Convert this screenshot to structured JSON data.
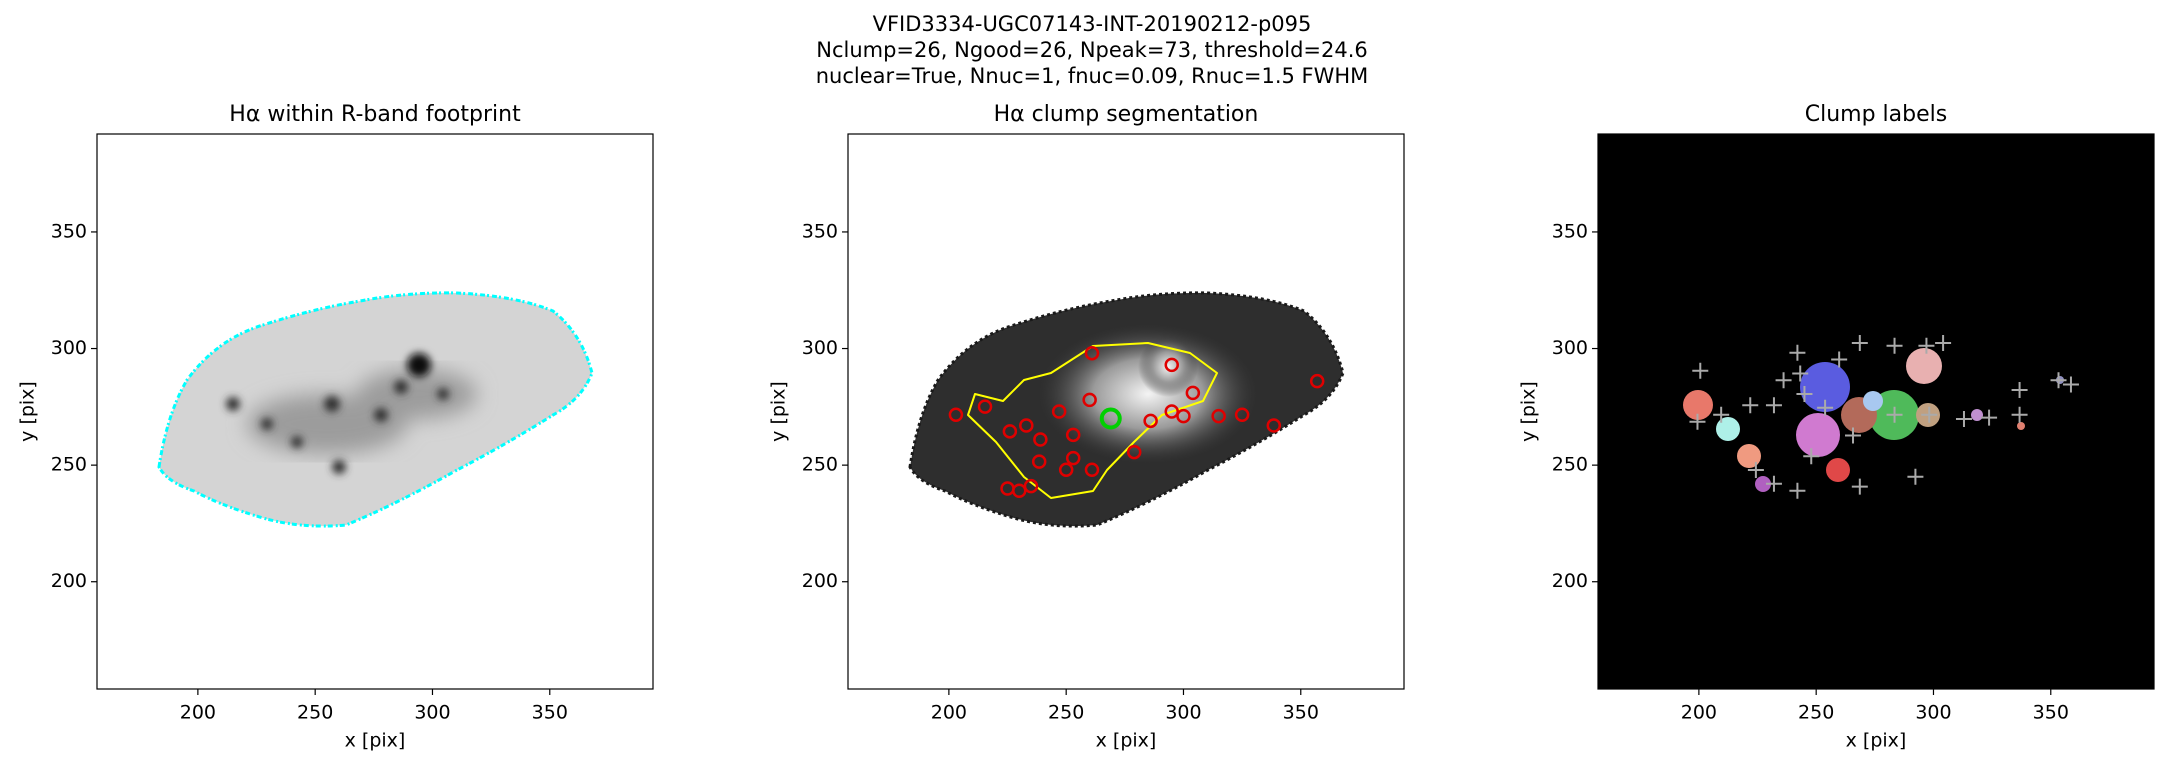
{
  "suptitle": [
    "VFID3334-UGC07143-INT-20190212-p095",
    "Nclump=26, Ngood=26, Npeak=73, threshold=24.6",
    "nuclear=True, Nnuc=1, fnuc=0.09, Rnuc=1.5 FWHM"
  ],
  "chart_data": [
    {
      "type": "image",
      "title": "Hα within R-band footprint",
      "xlabel": "x [pix]",
      "ylabel": "y [pix]",
      "xlim": [
        157,
        394
      ],
      "ylim": [
        154,
        392
      ],
      "xticks": [
        200,
        250,
        300,
        350
      ],
      "yticks": [
        200,
        250,
        300,
        350
      ]
    },
    {
      "type": "image",
      "title": "Hα clump segmentation",
      "xlabel": "x [pix]",
      "ylabel": "y [pix]",
      "xlim": [
        157,
        394
      ],
      "ylim": [
        154,
        392
      ],
      "xticks": [
        200,
        250,
        300,
        350
      ],
      "yticks": [
        200,
        250,
        300,
        350
      ],
      "series": [
        {
          "color": "#e00000",
          "marker": "o",
          "x": [
            215.4,
            203,
            226,
            233,
            239,
            247,
            253,
            260,
            238.5,
            235,
            250,
            253,
            261,
            286,
            295,
            300,
            304,
            295,
            279,
            315,
            325,
            338.5,
            357,
            261,
            225,
            230
          ],
          "y": [
            275.1,
            271.6,
            264.5,
            267,
            261,
            273,
            263,
            278,
            251.5,
            241,
            248,
            253,
            248,
            269,
            273,
            271,
            281,
            293,
            255.6,
            271,
            271.6,
            267,
            286,
            298,
            240,
            239
          ]
        },
        {
          "color": "#00d000",
          "marker": "o",
          "x": [
            269
          ],
          "y": [
            270
          ]
        }
      ]
    },
    {
      "type": "image",
      "title": "Clump labels",
      "xlabel": "x [pix]",
      "ylabel": "y [pix]",
      "xlim": [
        157,
        394
      ],
      "ylim": [
        154,
        392
      ],
      "xticks": [
        200,
        250,
        300,
        350
      ],
      "yticks": [
        200,
        250,
        300,
        350
      ],
      "series": [
        {
          "color": "#aaaaaa",
          "marker": "+",
          "x": [
            200.6,
            199.4,
            209.5,
            221.9,
            232,
            242,
            243.2,
            259.8,
            268.6,
            283.4,
            297,
            304.1,
            313,
            323.7,
            336.7,
            336.7,
            353.3,
            358.6,
            292.3,
            268.6,
            242,
            224.3,
            232,
            247.9,
            265.7,
            283.4,
            298.2,
            253.8,
            245,
            236.1
          ],
          "y": [
            290.5,
            268.6,
            271.6,
            275.7,
            275.7,
            298.2,
            289.3,
            295.3,
            302.4,
            301.2,
            301.2,
            302.4,
            269.8,
            270.4,
            282.2,
            271.6,
            286.4,
            284.6,
            245,
            240.8,
            239,
            247.9,
            242,
            253.8,
            262.7,
            271.6,
            271.6,
            274.6,
            280.5,
            286.4
          ]
        }
      ]
    }
  ]
}
